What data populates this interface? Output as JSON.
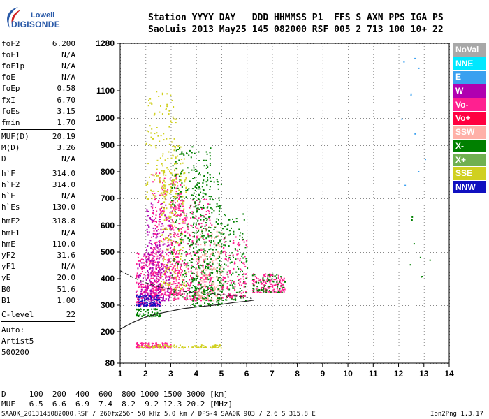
{
  "logo": {
    "line1": "Lowell",
    "line2": "DIGISONDE"
  },
  "header": {
    "line1": "Station YYYY DAY   DDD HHMMSS P1  FFS S AXN PPS IGA PS",
    "line2": "SaoLuis 2013 May25 145 082000 RSF 005 2 713 100 10+ 22"
  },
  "params_group1": [
    {
      "name": "foF2",
      "value": "6.200"
    },
    {
      "name": "foF1",
      "value": "N/A"
    },
    {
      "name": "foF1p",
      "value": "N/A"
    },
    {
      "name": "foE",
      "value": "N/A"
    },
    {
      "name": "foEp",
      "value": "0.58"
    },
    {
      "name": "fxI",
      "value": "6.70"
    },
    {
      "name": "foEs",
      "value": "3.15"
    },
    {
      "name": "fmin",
      "value": "1.70"
    }
  ],
  "params_group2": [
    {
      "name": "MUF(D)",
      "value": "20.19"
    },
    {
      "name": "M(D)",
      "value": "3.26"
    },
    {
      "name": "D",
      "value": "N/A"
    }
  ],
  "params_group3": [
    {
      "name": "h`F",
      "value": "314.0"
    },
    {
      "name": "h`F2",
      "value": "314.0"
    },
    {
      "name": "h`E",
      "value": "N/A"
    },
    {
      "name": "h`Es",
      "value": "130.0"
    }
  ],
  "params_group4": [
    {
      "name": "hmF2",
      "value": "318.8"
    },
    {
      "name": "hmF1",
      "value": "N/A"
    },
    {
      "name": "hmE",
      "value": "110.0"
    },
    {
      "name": "yF2",
      "value": "31.6"
    },
    {
      "name": "yF1",
      "value": "N/A"
    },
    {
      "name": "yE",
      "value": "20.0"
    },
    {
      "name": "B0",
      "value": "51.6"
    },
    {
      "name": "B1",
      "value": "1.00"
    }
  ],
  "params_group5": [
    {
      "name": "C-level",
      "value": "22"
    }
  ],
  "autoscaling": {
    "line1": "Auto:",
    "line2": "Artist5",
    "line3": "500200"
  },
  "footer": {
    "d_row": "D     100  200  400  600  800 1000 1500 3000 [km]",
    "muf_row": "MUF   6.5  6.6  6.9  7.4  8.2  9.2 12.3 20.2 [MHz]",
    "file_info": "SAA0K_2013145082000.RSF / 260fx256h 50 kHz 5.0 km / DPS-4 SAA0K 903 / 2.6 S 315.8 E",
    "version": "Ion2Png 1.3.17"
  },
  "legend": [
    {
      "label": "NoVal",
      "color": "#a8a8a8"
    },
    {
      "label": "NNE",
      "color": "#00e8ff"
    },
    {
      "label": "E",
      "color": "#3aa0f0"
    },
    {
      "label": "W",
      "color": "#b000b0"
    },
    {
      "label": "Vo-",
      "color": "#ff2090"
    },
    {
      "label": "Vo+",
      "color": "#ff0040"
    },
    {
      "label": "SSW",
      "color": "#ffb0a8"
    },
    {
      "label": "X-",
      "color": "#008000"
    },
    {
      "label": "X+",
      "color": "#70b050"
    },
    {
      "label": "SSE",
      "color": "#d0d020"
    },
    {
      "label": "NNW",
      "color": "#1010c0"
    }
  ],
  "chart_data": {
    "type": "scatter",
    "x_ticks": [
      1,
      2,
      3,
      4,
      5,
      6,
      7,
      8,
      9,
      10,
      11,
      12,
      13,
      14
    ],
    "y_ticks": [
      80,
      200,
      300,
      400,
      500,
      600,
      700,
      800,
      900,
      1000,
      1100,
      1280
    ],
    "xlim": [
      1,
      14
    ],
    "ylim": [
      80,
      1280
    ],
    "grid": true,
    "legend_position": "right",
    "profile_curve": [
      [
        1,
        210
      ],
      [
        1.5,
        235
      ],
      [
        2,
        255
      ],
      [
        2.5,
        268
      ],
      [
        3,
        278
      ],
      [
        3.5,
        287
      ],
      [
        4,
        293
      ],
      [
        4.5,
        298
      ],
      [
        5,
        303
      ],
      [
        5.5,
        310
      ],
      [
        6,
        315
      ],
      [
        6.3,
        319
      ]
    ],
    "trace_curve": [
      [
        1,
        430
      ],
      [
        1.5,
        405
      ],
      [
        2,
        385
      ],
      [
        2.5,
        370
      ],
      [
        3,
        360
      ],
      [
        3.5,
        352
      ],
      [
        4,
        347
      ],
      [
        4.5,
        345
      ],
      [
        5,
        340
      ],
      [
        5.5,
        335
      ],
      [
        6,
        330
      ],
      [
        6.2,
        325
      ]
    ],
    "echo_clusters": [
      {
        "x_range": [
          1.6,
          2.6
        ],
        "y_range": [
          300,
          500
        ],
        "color": "#ff2090",
        "count": 220
      },
      {
        "x_range": [
          1.6,
          2.6
        ],
        "y_range": [
          300,
          500
        ],
        "color": "#b000b0",
        "count": 120
      },
      {
        "x_range": [
          2,
          3
        ],
        "y_range": [
          320,
          700
        ],
        "color": "#b000b0",
        "count": 260
      },
      {
        "x_range": [
          2.2,
          3.4
        ],
        "y_range": [
          340,
          800
        ],
        "color": "#ff2090",
        "count": 300
      },
      {
        "x_range": [
          2.6,
          3.6
        ],
        "y_range": [
          360,
          900
        ],
        "color": "#d0d020",
        "count": 200
      },
      {
        "x_range": [
          3,
          4.6
        ],
        "y_range": [
          320,
          900
        ],
        "color": "#008000",
        "count": 320
      },
      {
        "x_range": [
          3,
          4.6
        ],
        "y_range": [
          320,
          700
        ],
        "color": "#ff2090",
        "count": 300
      },
      {
        "x_range": [
          3.8,
          5
        ],
        "y_range": [
          300,
          800
        ],
        "color": "#008000",
        "count": 260
      },
      {
        "x_range": [
          4,
          5
        ],
        "y_range": [
          320,
          600
        ],
        "color": "#ffb0a8",
        "count": 160
      },
      {
        "x_range": [
          4.8,
          6
        ],
        "y_range": [
          320,
          650
        ],
        "color": "#008000",
        "count": 150
      },
      {
        "x_range": [
          5,
          6
        ],
        "y_range": [
          330,
          560
        ],
        "color": "#ff2090",
        "count": 120
      },
      {
        "x_range": [
          6.2,
          7.5
        ],
        "y_range": [
          350,
          420
        ],
        "color": "#ff2090",
        "count": 130
      },
      {
        "x_range": [
          6.2,
          7.5
        ],
        "y_range": [
          350,
          420
        ],
        "color": "#008000",
        "count": 60
      },
      {
        "x_range": [
          2,
          3.2
        ],
        "y_range": [
          700,
          1100
        ],
        "color": "#d0d020",
        "count": 140
      },
      {
        "x_range": [
          1.6,
          3
        ],
        "y_range": [
          140,
          160
        ],
        "color": "#ff2090",
        "count": 120
      },
      {
        "x_range": [
          1.6,
          5
        ],
        "y_range": [
          140,
          152
        ],
        "color": "#d0d020",
        "count": 90
      },
      {
        "x_range": [
          1.6,
          2.6
        ],
        "y_range": [
          260,
          290
        ],
        "color": "#008000",
        "count": 70
      },
      {
        "x_range": [
          1.6,
          2.6
        ],
        "y_range": [
          300,
          340
        ],
        "color": "#1010c0",
        "count": 80
      },
      {
        "x_range": [
          12,
          13.3
        ],
        "y_range": [
          600,
          1250
        ],
        "color": "#3aa0f0",
        "count": 10
      },
      {
        "x_range": [
          12.4,
          13.3
        ],
        "y_range": [
          360,
          640
        ],
        "color": "#008000",
        "count": 8
      }
    ]
  }
}
